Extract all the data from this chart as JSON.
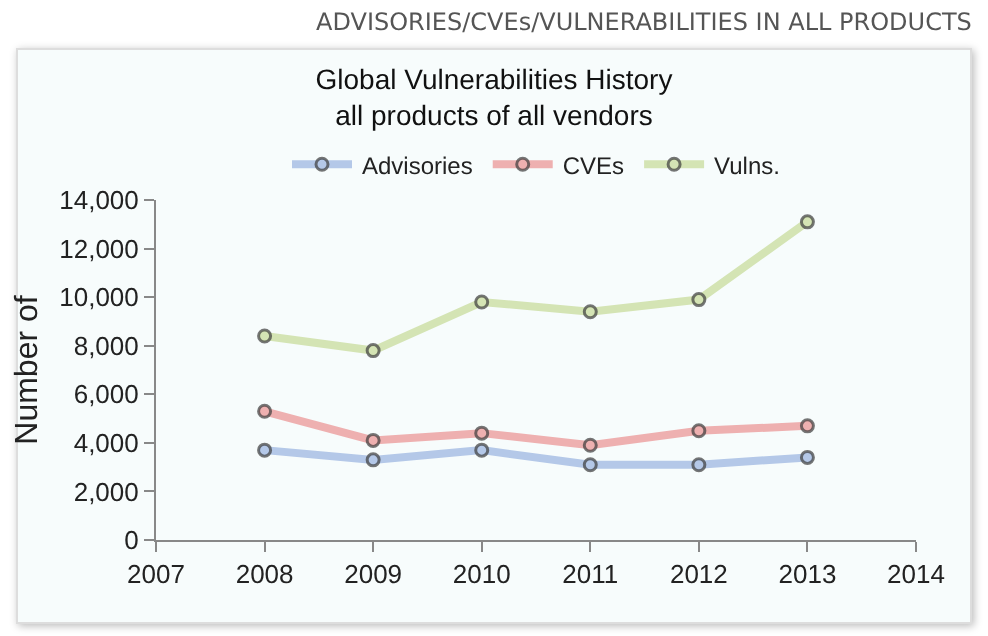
{
  "chart_data": {
    "type": "line",
    "title": "Global Vulnerabilities History",
    "subtitle": "all products of all vendors",
    "annotations": [
      "ADVISORIES/CVEs/VULNERABILITIES IN ALL PRODUCTS"
    ],
    "ylabel": "Number of",
    "x": [
      2008,
      2009,
      2010,
      2011,
      2012,
      2013
    ],
    "series": [
      {
        "name": "Advisories",
        "color": "#b4c8e8",
        "values": [
          3700,
          3300,
          3700,
          3100,
          3100,
          3400
        ]
      },
      {
        "name": "CVEs",
        "color": "#eeb0b0",
        "values": [
          5300,
          4100,
          4400,
          3900,
          4500,
          4700
        ]
      },
      {
        "name": "Vulns.",
        "color": "#d4e4b4",
        "values": [
          8400,
          7800,
          9800,
          9400,
          9900,
          13100
        ]
      }
    ],
    "xlim": [
      2007,
      2014
    ],
    "xticks": [
      2007,
      2008,
      2009,
      2010,
      2011,
      2012,
      2013,
      2014
    ],
    "ylim": [
      0,
      14000
    ],
    "yticks": [
      0,
      {
        "value": 2000,
        "label": "2,000"
      },
      {
        "value": 4000,
        "label": "4,000"
      },
      {
        "value": 6000,
        "label": "6,000"
      },
      {
        "value": 8000,
        "label": "8,000"
      },
      {
        "value": 10000,
        "label": "10,000"
      },
      {
        "value": 12000,
        "label": "12,000"
      },
      {
        "value": 14000,
        "label": "14,000"
      }
    ],
    "grid": false,
    "legend": "top",
    "marker": "circle",
    "line_style": "solid"
  }
}
